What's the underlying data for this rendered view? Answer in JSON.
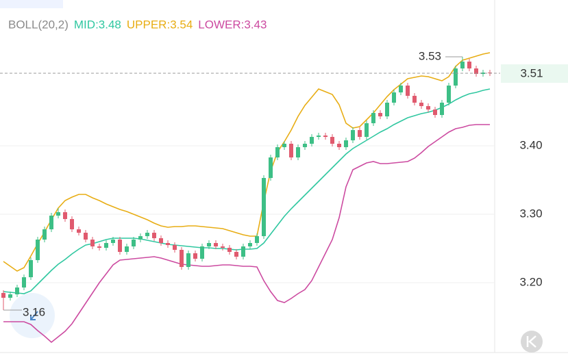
{
  "chart_data": {
    "type": "candlestick",
    "indicator": "BOLL(20,2)",
    "legend_separator": ":",
    "ylim": [
      3.098,
      3.613
    ],
    "yticks": [
      {
        "value": 3.2,
        "label": "3.20"
      },
      {
        "value": 3.3,
        "label": "3.30"
      },
      {
        "value": 3.4,
        "label": "3.40"
      }
    ],
    "grid": true,
    "up_color": "#3dbf86",
    "down_color": "#e05a6e",
    "last_price": {
      "value": 3.506,
      "label": "3.51"
    },
    "open": [
      3.185,
      3.178,
      3.183,
      3.193,
      3.208,
      3.233,
      3.263,
      3.278,
      3.298,
      3.303,
      3.293,
      3.278,
      3.273,
      3.263,
      3.253,
      3.251,
      3.258,
      3.263,
      3.245,
      3.253,
      3.263,
      3.268,
      3.273,
      3.265,
      3.258,
      3.255,
      3.248,
      3.223,
      3.243,
      3.235,
      3.253,
      3.258,
      3.253,
      3.251,
      3.245,
      3.238,
      3.253,
      3.258,
      3.268,
      3.353,
      3.383,
      3.398,
      3.403,
      3.383,
      3.398,
      3.403,
      3.413,
      3.415,
      3.413,
      3.403,
      3.398,
      3.408,
      3.423,
      3.413,
      3.433,
      3.448,
      3.443,
      3.463,
      3.478,
      3.488,
      3.473,
      3.463,
      3.458,
      3.453,
      3.445,
      3.463,
      3.488,
      3.513,
      3.523,
      3.513,
      3.505,
      3.507
    ],
    "high": [
      3.189,
      3.187,
      3.197,
      3.212,
      3.237,
      3.267,
      3.282,
      3.302,
      3.309,
      3.307,
      3.297,
      3.282,
      3.277,
      3.267,
      3.257,
      3.262,
      3.267,
      3.267,
      3.257,
      3.267,
      3.272,
      3.277,
      3.277,
      3.269,
      3.262,
      3.259,
      3.252,
      3.247,
      3.247,
      3.257,
      3.262,
      3.262,
      3.257,
      3.255,
      3.249,
      3.257,
      3.262,
      3.272,
      3.357,
      3.387,
      3.402,
      3.407,
      3.407,
      3.402,
      3.407,
      3.417,
      3.419,
      3.419,
      3.417,
      3.407,
      3.412,
      3.427,
      3.427,
      3.437,
      3.452,
      3.452,
      3.467,
      3.482,
      3.492,
      3.492,
      3.477,
      3.467,
      3.462,
      3.457,
      3.467,
      3.492,
      3.517,
      3.53,
      3.527,
      3.517,
      3.511,
      3.511
    ],
    "low": [
      3.16,
      3.174,
      3.179,
      3.189,
      3.204,
      3.229,
      3.259,
      3.274,
      3.294,
      3.289,
      3.274,
      3.269,
      3.259,
      3.249,
      3.247,
      3.247,
      3.254,
      3.241,
      3.241,
      3.249,
      3.259,
      3.264,
      3.261,
      3.254,
      3.251,
      3.244,
      3.219,
      3.219,
      3.231,
      3.231,
      3.249,
      3.249,
      3.247,
      3.241,
      3.234,
      3.234,
      3.249,
      3.254,
      3.264,
      3.349,
      3.379,
      3.394,
      3.379,
      3.379,
      3.394,
      3.399,
      3.409,
      3.409,
      3.399,
      3.394,
      3.394,
      3.404,
      3.409,
      3.409,
      3.429,
      3.439,
      3.439,
      3.459,
      3.474,
      3.469,
      3.459,
      3.454,
      3.449,
      3.441,
      3.441,
      3.459,
      3.484,
      3.509,
      3.509,
      3.501,
      3.501,
      3.502
    ],
    "close": [
      3.178,
      3.183,
      3.193,
      3.208,
      3.233,
      3.263,
      3.278,
      3.298,
      3.303,
      3.293,
      3.278,
      3.273,
      3.263,
      3.253,
      3.251,
      3.258,
      3.263,
      3.245,
      3.253,
      3.263,
      3.268,
      3.273,
      3.265,
      3.258,
      3.255,
      3.248,
      3.223,
      3.243,
      3.235,
      3.253,
      3.258,
      3.253,
      3.251,
      3.245,
      3.238,
      3.253,
      3.258,
      3.268,
      3.353,
      3.383,
      3.398,
      3.403,
      3.383,
      3.398,
      3.403,
      3.413,
      3.415,
      3.413,
      3.403,
      3.398,
      3.408,
      3.423,
      3.413,
      3.433,
      3.448,
      3.443,
      3.463,
      3.478,
      3.488,
      3.473,
      3.463,
      3.458,
      3.453,
      3.445,
      3.463,
      3.488,
      3.513,
      3.523,
      3.513,
      3.505,
      3.507,
      3.506
    ],
    "series": [
      {
        "name": "MID",
        "color": "#2fc7a0",
        "last": 3.48,
        "values": [
          3.187,
          3.186,
          3.185,
          3.184,
          3.188,
          3.198,
          3.208,
          3.218,
          3.227,
          3.234,
          3.242,
          3.249,
          3.255,
          3.257,
          3.26,
          3.263,
          3.265,
          3.265,
          3.265,
          3.265,
          3.264,
          3.262,
          3.26,
          3.258,
          3.256,
          3.255,
          3.254,
          3.253,
          3.252,
          3.251,
          3.251,
          3.25,
          3.25,
          3.249,
          3.248,
          3.249,
          3.249,
          3.25,
          3.258,
          3.271,
          3.284,
          3.297,
          3.308,
          3.318,
          3.328,
          3.338,
          3.348,
          3.358,
          3.368,
          3.378,
          3.388,
          3.396,
          3.402,
          3.408,
          3.414,
          3.42,
          3.425,
          3.431,
          3.436,
          3.441,
          3.444,
          3.447,
          3.449,
          3.452,
          3.456,
          3.461,
          3.467,
          3.472,
          3.476,
          3.478,
          3.481,
          3.483
        ]
      },
      {
        "name": "UPPER",
        "color": "#e8ad14",
        "last": 3.54,
        "values": [
          3.231,
          3.224,
          3.217,
          3.222,
          3.239,
          3.257,
          3.274,
          3.292,
          3.309,
          3.32,
          3.325,
          3.329,
          3.329,
          3.324,
          3.32,
          3.315,
          3.311,
          3.307,
          3.304,
          3.3,
          3.296,
          3.292,
          3.287,
          3.283,
          3.281,
          3.282,
          3.282,
          3.283,
          3.283,
          3.282,
          3.281,
          3.28,
          3.279,
          3.276,
          3.273,
          3.27,
          3.268,
          3.268,
          3.318,
          3.363,
          3.391,
          3.406,
          3.423,
          3.443,
          3.459,
          3.471,
          3.483,
          3.479,
          3.475,
          3.46,
          3.433,
          3.426,
          3.428,
          3.438,
          3.448,
          3.46,
          3.472,
          3.482,
          3.49,
          3.498,
          3.5,
          3.502,
          3.501,
          3.498,
          3.495,
          3.501,
          3.516,
          3.525,
          3.528,
          3.531,
          3.534,
          3.536
        ]
      },
      {
        "name": "LOWER",
        "color": "#cc4aa0",
        "last": 3.43,
        "values": [
          3.143,
          3.143,
          3.143,
          3.143,
          3.139,
          3.13,
          3.122,
          3.113,
          3.121,
          3.129,
          3.14,
          3.155,
          3.17,
          3.185,
          3.2,
          3.213,
          3.226,
          3.233,
          3.234,
          3.235,
          3.236,
          3.237,
          3.238,
          3.236,
          3.233,
          3.23,
          3.227,
          3.226,
          3.225,
          3.224,
          3.224,
          3.225,
          3.226,
          3.226,
          3.225,
          3.224,
          3.224,
          3.223,
          3.203,
          3.187,
          3.174,
          3.171,
          3.177,
          3.184,
          3.19,
          3.203,
          3.223,
          3.243,
          3.263,
          3.295,
          3.34,
          3.365,
          3.37,
          3.375,
          3.377,
          3.374,
          3.374,
          3.375,
          3.376,
          3.377,
          3.382,
          3.39,
          3.399,
          3.406,
          3.413,
          3.42,
          3.425,
          3.427,
          3.43,
          3.431,
          3.431,
          3.431
        ]
      }
    ]
  }
}
